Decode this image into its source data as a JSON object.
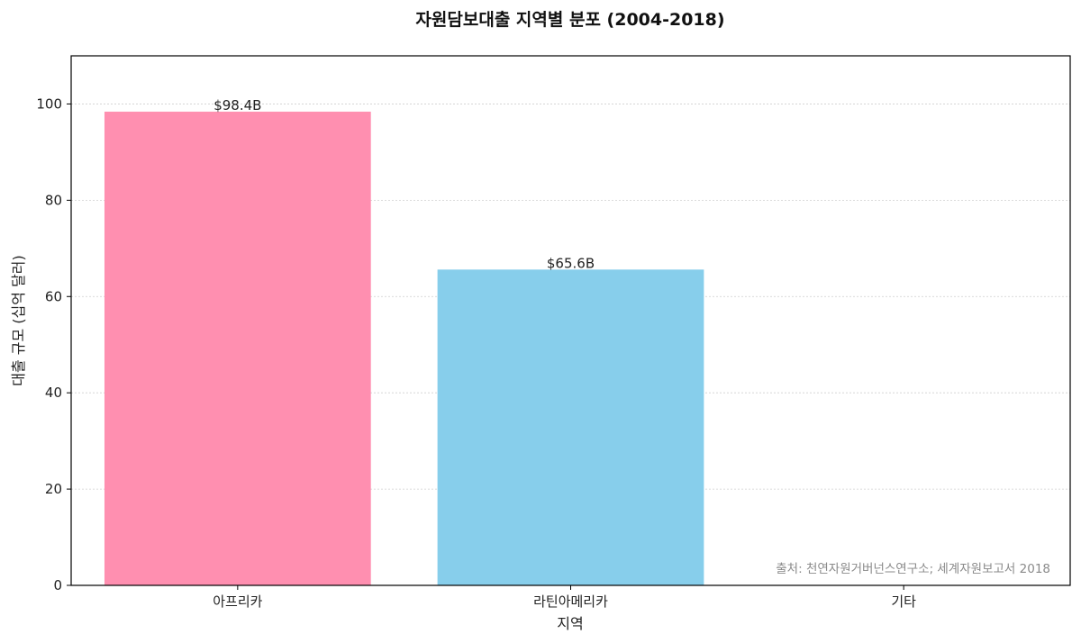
{
  "chart_data": {
    "type": "bar",
    "title": "자원담보대출 지역별 분포 (2004-2018)",
    "xlabel": "지역",
    "ylabel": "대출 규모 (십억 달러)",
    "categories": [
      "아프리카",
      "라틴아메리카",
      "기타"
    ],
    "values": [
      98.4,
      65.6,
      0
    ],
    "data_labels": [
      "$98.4B",
      "$65.6B",
      ""
    ],
    "colors": [
      "#ff8fb0",
      "#87ceeb",
      "#cccccc"
    ],
    "ylim": [
      0,
      110
    ],
    "yticks": [
      0,
      20,
      40,
      60,
      80,
      100
    ],
    "ytick_labels": [
      "0",
      "20",
      "40",
      "60",
      "80",
      "100"
    ],
    "grid": "y",
    "legend": "none",
    "annotation": "출처: 천연자원거버넌스연구소; 세계자원보고서 2018"
  }
}
